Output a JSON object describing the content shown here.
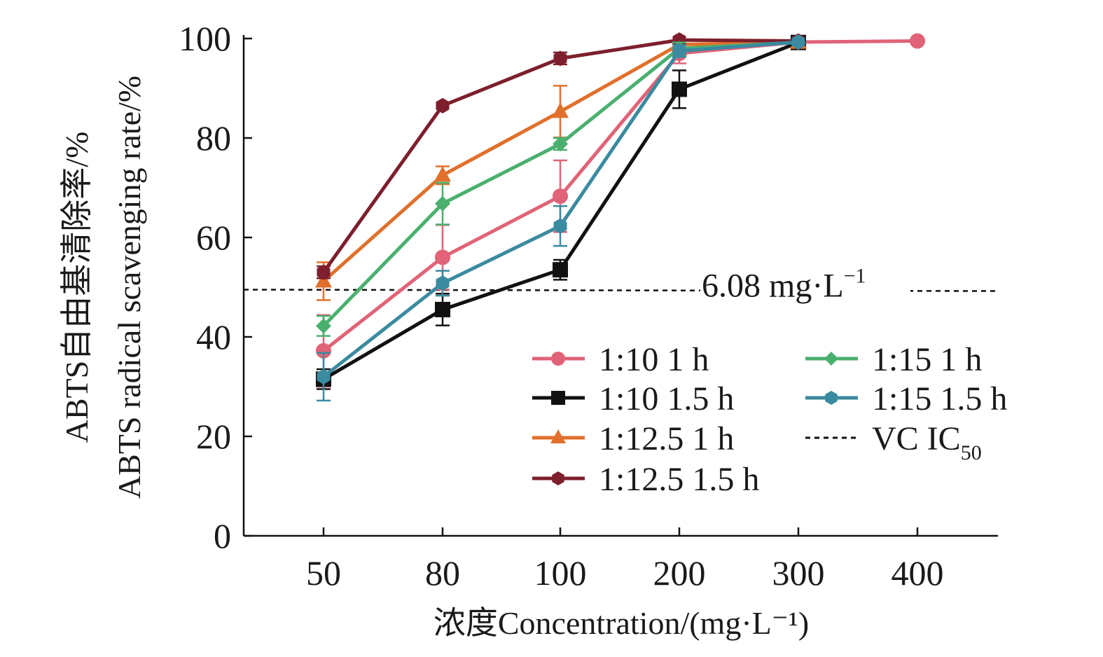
{
  "chart_data": {
    "type": "line",
    "xlabel": "浓度Concentration/(mg·L⁻¹)",
    "ylabel_cn": "ABTS自由基清除率/%",
    "ylabel_en": "ABTS radical scavenging rate/%",
    "categories": [
      "50",
      "80",
      "100",
      "200",
      "300",
      "400"
    ],
    "ylim": [
      0,
      100
    ],
    "yticks": [
      0,
      20,
      40,
      60,
      80,
      100
    ],
    "grid": false,
    "legend_position": "lower-right",
    "series": [
      {
        "name": "1:10 1 h",
        "color": "#e06377",
        "marker": "circle",
        "values": [
          37.2,
          56,
          68.3,
          97,
          99.3,
          99.5
        ],
        "errors": [
          7.2,
          6.5,
          7.2,
          2,
          0.5,
          0.5
        ]
      },
      {
        "name": "1:10 1.5 h",
        "color": "#111111",
        "marker": "square",
        "values": [
          31.5,
          45.5,
          53.5,
          89.8,
          99.2,
          null
        ],
        "errors": [
          2,
          3.2,
          2,
          3.8,
          0.5,
          null
        ]
      },
      {
        "name": "1:12.5 1 h",
        "color": "#e0702b",
        "marker": "triangle",
        "values": [
          51.2,
          72.5,
          85.3,
          98.8,
          99.2,
          null
        ],
        "errors": [
          3.8,
          1.8,
          5.2,
          0.5,
          0.5,
          null
        ]
      },
      {
        "name": "1:12.5 1.5 h",
        "color": "#7d1f2c",
        "marker": "hexagon",
        "values": [
          53,
          86.5,
          96,
          99.7,
          99.5,
          null
        ],
        "errors": [
          1.2,
          0.5,
          1.2,
          0.3,
          0.3,
          null
        ]
      },
      {
        "name": "1:15 1 h",
        "color": "#4ab06e",
        "marker": "diamond",
        "values": [
          42.2,
          66.8,
          78.8,
          98,
          99.2,
          null
        ],
        "errors": [
          2,
          4.2,
          1.2,
          1.2,
          0.5,
          null
        ]
      },
      {
        "name": "1:15 1.5 h",
        "color": "#3a8aa0",
        "marker": "hexagon",
        "values": [
          32,
          50.8,
          62.3,
          97.5,
          99.3,
          null
        ],
        "errors": [
          4.8,
          2.5,
          4,
          1.2,
          0.5,
          null
        ]
      }
    ],
    "reference_line": {
      "name": "VC IC",
      "subscript": "50",
      "value": 49.5,
      "label": "6.08 mg·L",
      "label_sup": "−1",
      "color": "#111111"
    }
  }
}
